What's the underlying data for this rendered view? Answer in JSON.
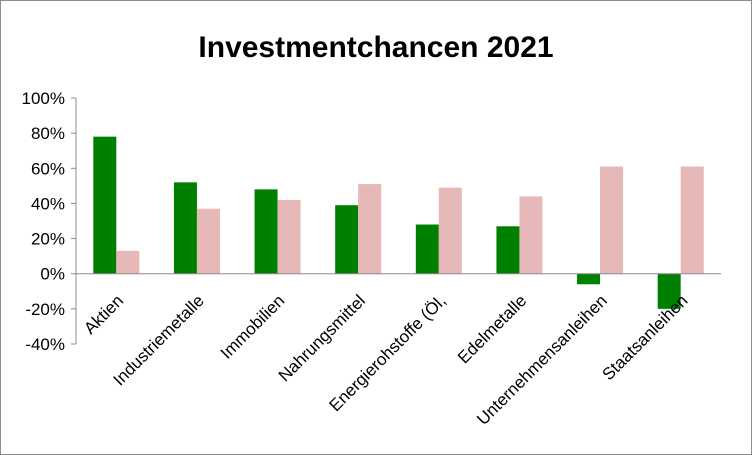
{
  "chart_data": {
    "type": "bar",
    "title": "Investmentchancen 2021",
    "categories": [
      "Aktien",
      "Industriemetalle",
      "Immobilien",
      "Nahrungsmittel",
      "Energierohstoffe (Öl,",
      "Edelmetalle",
      "Unternehmensanleihen",
      "Staatsanleihen"
    ],
    "series": [
      {
        "values": [
          78,
          52,
          48,
          39,
          28,
          27,
          -6,
          -20
        ],
        "color": "#008000"
      },
      {
        "values": [
          13,
          37,
          42,
          51,
          49,
          44,
          61,
          61
        ],
        "color": "#e6b8b7"
      }
    ],
    "ylim": [
      -40,
      100
    ],
    "yticks": [
      -40,
      -20,
      0,
      20,
      40,
      60,
      80,
      100
    ],
    "ytick_labels": [
      "-40%",
      "-20%",
      "0%",
      "20%",
      "40%",
      "60%",
      "80%",
      "100%"
    ],
    "grid": false,
    "legend": "none"
  }
}
